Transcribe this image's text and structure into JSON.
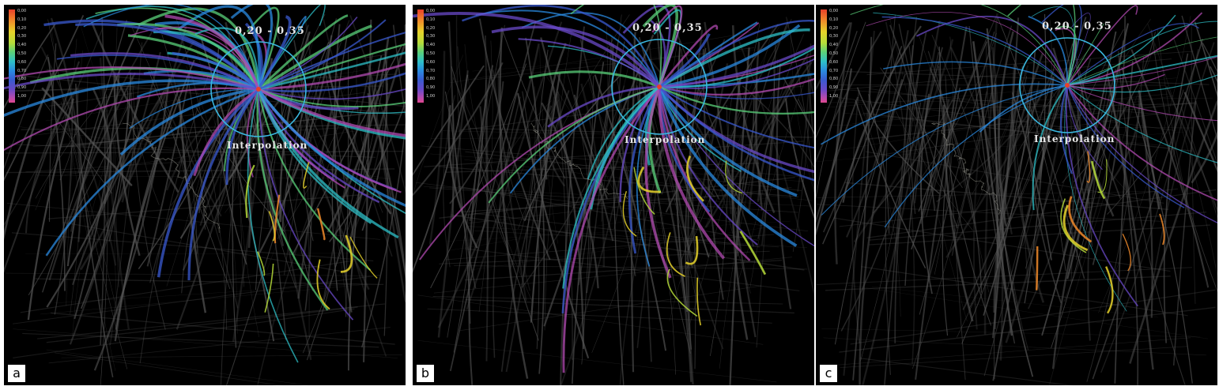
{
  "legend": {
    "ticks": [
      "0,00",
      "0,10",
      "0,20",
      "0,30",
      "0,40",
      "0,50",
      "0,60",
      "0,70",
      "0,80",
      "0,90",
      "1,00"
    ],
    "colors": [
      "#e8402a",
      "#f08a2a",
      "#e6d22a",
      "#b6dc3a",
      "#5ad07a",
      "#2ec0c8",
      "#2a8ae0",
      "#3a5ad0",
      "#6a4ac8",
      "#b04ab0",
      "#e04890"
    ]
  },
  "panels": [
    {
      "tag": "a",
      "range_label": "0,20 - 0,35",
      "interpolation_label": "Interpolation"
    },
    {
      "tag": "b",
      "range_label": "0,20 - 0,35",
      "interpolation_label": "Interpolation"
    },
    {
      "tag": "c",
      "range_label": "0,20 - 0,35",
      "interpolation_label": "Interpolation"
    }
  ],
  "colors": {
    "background": "#000000",
    "context_lines": "#9a9a9a",
    "focus_circle": "#3ab8e0",
    "boundaries": "#d8d8c8"
  }
}
